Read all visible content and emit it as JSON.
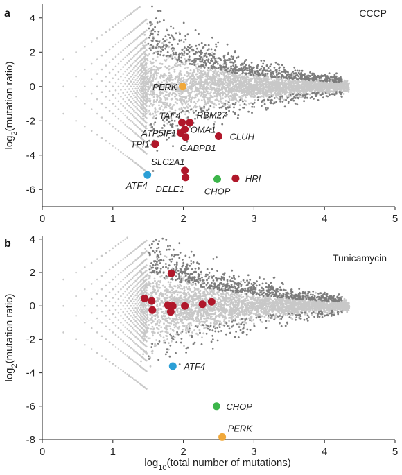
{
  "chart_data": [
    {
      "type": "scatter",
      "panel_letter": "a",
      "title": "CCCP",
      "xlabel": "",
      "ylabel_base": "log",
      "ylabel_sub": "2",
      "ylabel_rest": "(mutation ratio)",
      "xlim": [
        0,
        5
      ],
      "ylim": [
        -7,
        4.8
      ],
      "xticks": [
        "0",
        "1",
        "2",
        "3",
        "4",
        "5"
      ],
      "yticks": [
        "4",
        "2",
        "0",
        "-2",
        "-4",
        "-6"
      ],
      "ytick_values": [
        4,
        2,
        0,
        -2,
        -4,
        -6
      ],
      "highlight_colors": {
        "perk": "#f0a83a",
        "chop": "#3cb54a",
        "atf4": "#2b9fd6",
        "genes": "#b0172a"
      },
      "genes": [
        {
          "name": "PERK",
          "x": 1.99,
          "y": 0.0,
          "color": "#f0a83a",
          "label": "PERK"
        },
        {
          "name": "TAF4",
          "x": 1.98,
          "y": -2.1,
          "color": "#b0172a",
          "label": "TAF4"
        },
        {
          "name": "RBM27",
          "x": 2.09,
          "y": -2.1,
          "color": "#b0172a",
          "label": "RBM27"
        },
        {
          "name": "ATP5IF1",
          "x": 1.96,
          "y": -2.7,
          "color": "#b0172a",
          "label": "ATP5IF1"
        },
        {
          "name": "OMA1",
          "x": 2.02,
          "y": -2.5,
          "color": "#b0172a",
          "label": "OMA1"
        },
        {
          "name": "GABPB1",
          "x": 2.03,
          "y": -2.95,
          "color": "#b0172a",
          "label": "GABPB1"
        },
        {
          "name": "CLUH",
          "x": 2.5,
          "y": -2.9,
          "color": "#b0172a",
          "label": "CLUH"
        },
        {
          "name": "TPI1",
          "x": 1.6,
          "y": -3.35,
          "color": "#b0172a",
          "label": "TPI1"
        },
        {
          "name": "SLC2A1",
          "x": 2.02,
          "y": -4.9,
          "color": "#b0172a",
          "label": "SLC2A1"
        },
        {
          "name": "DELE1",
          "x": 2.03,
          "y": -5.3,
          "color": "#b0172a",
          "label": "DELE1"
        },
        {
          "name": "ATF4",
          "x": 1.49,
          "y": -5.15,
          "color": "#2b9fd6",
          "label": "ATF4"
        },
        {
          "name": "CHOP",
          "x": 2.48,
          "y": -5.4,
          "color": "#3cb54a",
          "label": "CHOP"
        },
        {
          "name": "HRI",
          "x": 2.74,
          "y": -5.35,
          "color": "#b0172a",
          "label": "HRI"
        }
      ]
    },
    {
      "type": "scatter",
      "panel_letter": "b",
      "title": "Tunicamycin",
      "xlabel_base": "log",
      "xlabel_sub": "10",
      "xlabel_rest": "(total number of mutations)",
      "ylabel_base": "log",
      "ylabel_sub": "2",
      "ylabel_rest": "(mutation ratio)",
      "xlim": [
        0,
        5
      ],
      "ylim": [
        -8,
        4.2
      ],
      "xticks": [
        "0",
        "1",
        "2",
        "3",
        "4",
        "5"
      ],
      "yticks": [
        "4",
        "2",
        "0",
        "-2",
        "-4",
        "-6",
        "-8"
      ],
      "ytick_values": [
        4,
        2,
        0,
        -2,
        -4,
        -6,
        -8
      ],
      "genes": [
        {
          "name": "g1",
          "x": 1.83,
          "y": 1.95,
          "color": "#b0172a",
          "label": ""
        },
        {
          "name": "g2",
          "x": 1.45,
          "y": 0.45,
          "color": "#b0172a",
          "label": ""
        },
        {
          "name": "g3",
          "x": 1.55,
          "y": 0.3,
          "color": "#b0172a",
          "label": ""
        },
        {
          "name": "g4",
          "x": 1.56,
          "y": -0.25,
          "color": "#b0172a",
          "label": ""
        },
        {
          "name": "g5",
          "x": 1.78,
          "y": 0.05,
          "color": "#b0172a",
          "label": ""
        },
        {
          "name": "g6",
          "x": 1.85,
          "y": -0.0,
          "color": "#b0172a",
          "label": ""
        },
        {
          "name": "g7",
          "x": 1.82,
          "y": -0.35,
          "color": "#b0172a",
          "label": ""
        },
        {
          "name": "g8",
          "x": 2.02,
          "y": 0.0,
          "color": "#b0172a",
          "label": ""
        },
        {
          "name": "g9",
          "x": 2.27,
          "y": 0.1,
          "color": "#b0172a",
          "label": ""
        },
        {
          "name": "g10",
          "x": 2.4,
          "y": 0.25,
          "color": "#b0172a",
          "label": ""
        },
        {
          "name": "ATF4",
          "x": 1.85,
          "y": -3.6,
          "color": "#2b9fd6",
          "label": "ATF4"
        },
        {
          "name": "CHOP",
          "x": 2.47,
          "y": -6.0,
          "color": "#3cb54a",
          "label": "CHOP"
        },
        {
          "name": "PERK",
          "x": 2.55,
          "y": -7.85,
          "color": "#f0a83a",
          "label": "PERK"
        }
      ]
    }
  ],
  "background_colors": {
    "light": "#c8c8c8",
    "dark": "#7c7c7c"
  }
}
